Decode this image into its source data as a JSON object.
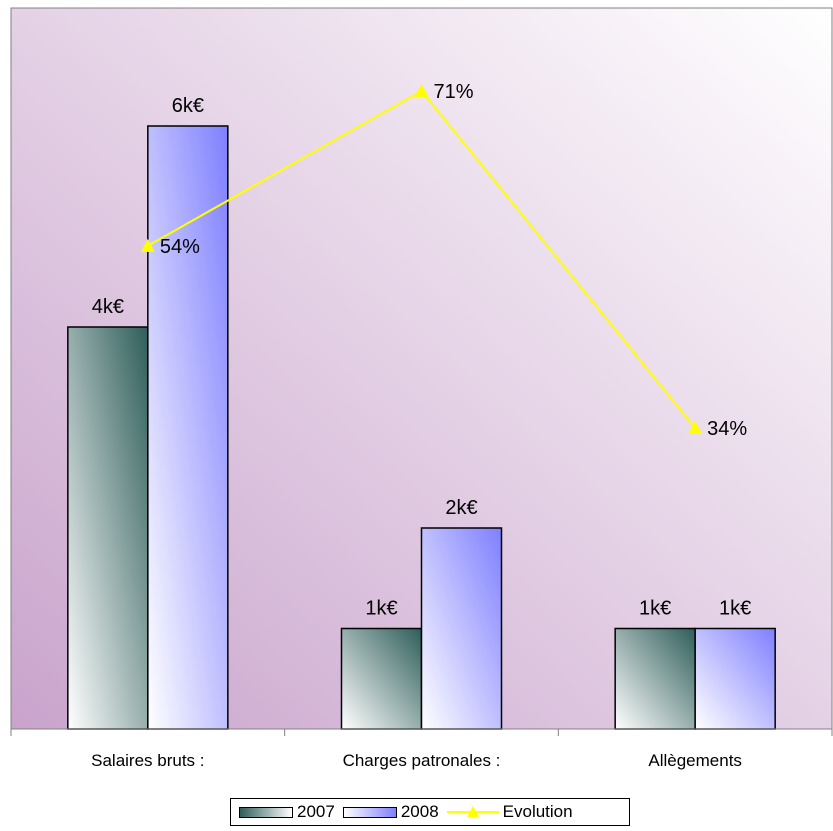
{
  "chart_data": {
    "type": "bar",
    "categories": [
      "Salaires bruts :",
      "Charges patronales :",
      "Allègements"
    ],
    "series": [
      {
        "name": "2007",
        "values": [
          4,
          1,
          1
        ],
        "labels": [
          "4k€",
          "1k€",
          "1k€"
        ]
      },
      {
        "name": "2008",
        "values": [
          6,
          2,
          1
        ],
        "labels": [
          "6k€",
          "2k€",
          "1k€"
        ]
      }
    ],
    "line_series": {
      "name": "Evolution",
      "values": [
        54,
        71,
        34
      ],
      "labels": [
        "54%",
        "71%",
        "34%"
      ],
      "color": "#ffff00"
    },
    "ylim": [
      0,
      7
    ],
    "legend": "bottom",
    "grid": false
  },
  "colors": {
    "bar2007_dark": "#2f5e5a",
    "bar2008_dark": "#7f7fff",
    "background_top": "#ffffff",
    "background_bottom": "#c9a3cc"
  }
}
